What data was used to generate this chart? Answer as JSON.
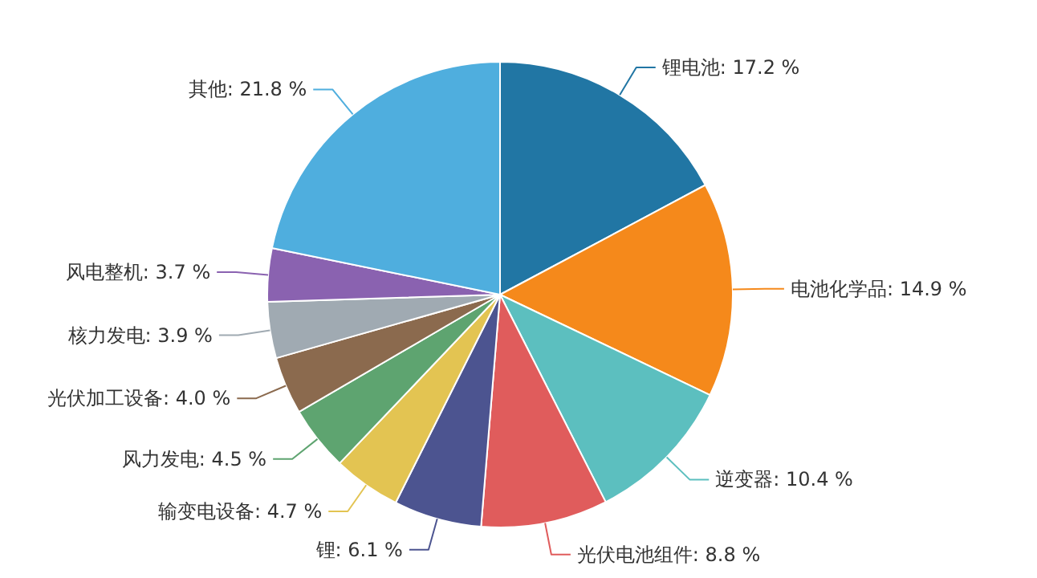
{
  "chart_data": {
    "type": "pie",
    "categories": [
      "锂电池",
      "电池化学品",
      "逆变器",
      "光伏电池组件",
      "锂",
      "输变电设备",
      "风力发电",
      "光伏加工设备",
      "核力发电",
      "风电整机",
      "其他"
    ],
    "values": [
      17.2,
      14.9,
      10.4,
      8.8,
      6.1,
      4.7,
      4.5,
      4.0,
      3.9,
      3.7,
      21.8
    ],
    "value_labels": [
      "17.2 %",
      "14.9 %",
      "10.4 %",
      "8.8 %",
      "6.1 %",
      "4.7 %",
      "4.5 %",
      "4.0 %",
      "3.9 %",
      "3.7 %",
      "21.8 %"
    ],
    "colors": [
      "#2176a4",
      "#f5891b",
      "#5cbfbf",
      "#e05c5c",
      "#4c5490",
      "#e3c452",
      "#5ea470",
      "#8b6a4e",
      "#a0aab2",
      "#8a62b0",
      "#4faede"
    ]
  }
}
